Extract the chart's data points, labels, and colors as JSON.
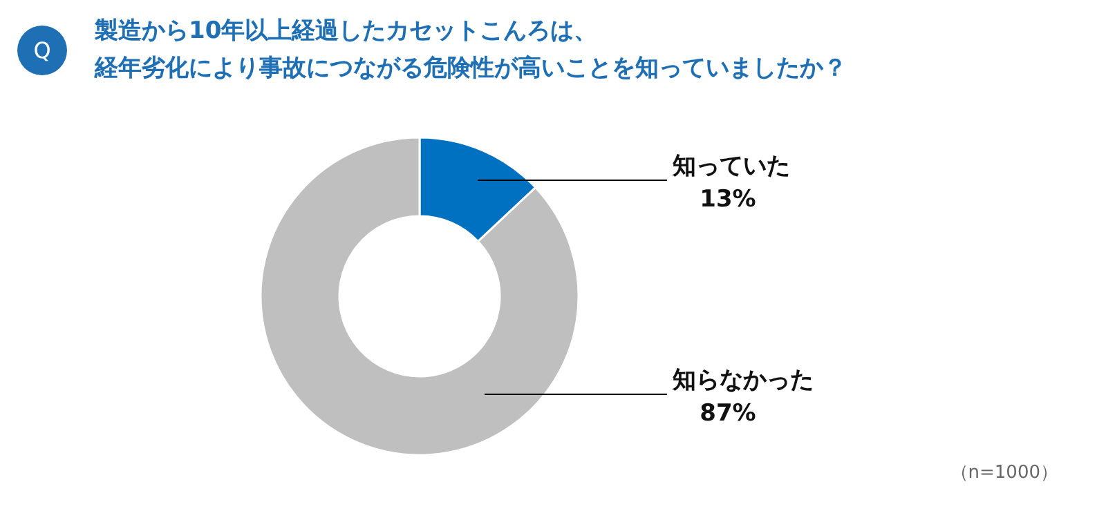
{
  "chart_data": {
    "type": "donut",
    "title": "製造から10年以上経過したカセットこんろは、経年劣化により事故につながる危険性が高いことを知っていましたか？",
    "categories": [
      "知っていた",
      "知らなかった"
    ],
    "values": [
      13,
      87
    ],
    "colors": [
      "#0070c0",
      "#bfbfbf"
    ],
    "value_labels": [
      "13%",
      "87%"
    ],
    "annotations": [
      "Q",
      "（n=1000）"
    ]
  }
}
